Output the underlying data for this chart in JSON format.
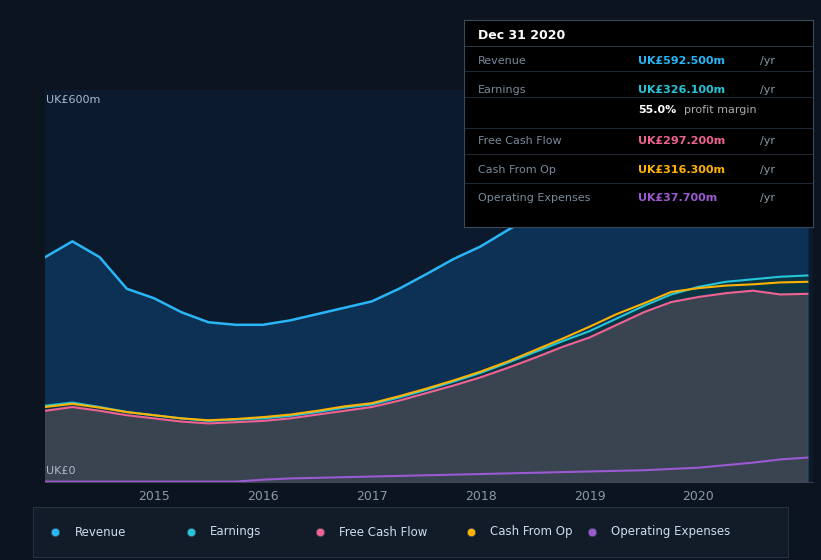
{
  "bg_color": "#0c1420",
  "plot_bg": "#0c1a2e",
  "title": "Dec 31 2020",
  "ylabel_top": "UK£600m",
  "ylabel_bottom": "UK£0",
  "grid_color": "#1a2d45",
  "x_years": [
    2014.0,
    2014.25,
    2014.5,
    2014.75,
    2015.0,
    2015.25,
    2015.5,
    2015.75,
    2016.0,
    2016.25,
    2016.5,
    2016.75,
    2017.0,
    2017.25,
    2017.5,
    2017.75,
    2018.0,
    2018.25,
    2018.5,
    2018.75,
    2019.0,
    2019.25,
    2019.5,
    2019.75,
    2020.0,
    2020.25,
    2020.5,
    2020.75,
    2021.0
  ],
  "revenue": [
    355,
    380,
    355,
    305,
    290,
    268,
    252,
    248,
    248,
    255,
    265,
    275,
    285,
    305,
    328,
    352,
    372,
    398,
    422,
    455,
    475,
    500,
    522,
    550,
    565,
    575,
    582,
    590,
    592
  ],
  "earnings": [
    120,
    125,
    118,
    110,
    105,
    100,
    96,
    98,
    100,
    104,
    110,
    117,
    122,
    133,
    145,
    158,
    172,
    188,
    205,
    222,
    238,
    258,
    278,
    296,
    308,
    316,
    320,
    324,
    326
  ],
  "free_cash_flow": [
    112,
    118,
    112,
    105,
    100,
    95,
    92,
    94,
    96,
    100,
    106,
    112,
    118,
    128,
    140,
    152,
    165,
    180,
    196,
    213,
    228,
    248,
    268,
    284,
    292,
    298,
    302,
    296,
    297
  ],
  "cash_from_op": [
    118,
    123,
    117,
    110,
    105,
    100,
    97,
    99,
    102,
    106,
    112,
    119,
    124,
    135,
    147,
    160,
    174,
    190,
    208,
    226,
    245,
    265,
    282,
    300,
    306,
    310,
    312,
    315,
    316
  ],
  "operating_expenses": [
    0,
    0,
    0,
    0,
    0,
    0,
    0,
    0,
    3,
    5,
    6,
    7,
    8,
    9,
    10,
    11,
    12,
    13,
    14,
    15,
    16,
    17,
    18,
    20,
    22,
    26,
    30,
    35,
    38
  ],
  "revenue_color": "#29b6f6",
  "earnings_color": "#26c6da",
  "free_cash_flow_color": "#f06292",
  "cash_from_op_color": "#ffb300",
  "operating_expenses_color": "#9c59d1",
  "annotation": {
    "date": "Dec 31 2020",
    "rows": [
      {
        "label": "Revenue",
        "value": "UK£592.500m",
        "suffix": "/yr",
        "color": "#29b6f6",
        "bold_label": false,
        "extra": null
      },
      {
        "label": "Earnings",
        "value": "UK£326.100m",
        "suffix": "/yr",
        "color": "#26c6da",
        "bold_label": false,
        "extra": "55.0% profit margin"
      },
      {
        "label": "Free Cash Flow",
        "value": "UK£297.200m",
        "suffix": "/yr",
        "color": "#f06292",
        "bold_label": false,
        "extra": null
      },
      {
        "label": "Cash From Op",
        "value": "UK£316.300m",
        "suffix": "/yr",
        "color": "#ffb300",
        "bold_label": false,
        "extra": null
      },
      {
        "label": "Operating Expenses",
        "value": "UK£37.700m",
        "suffix": "/yr",
        "color": "#9c59d1",
        "bold_label": false,
        "extra": null
      }
    ]
  },
  "legend": [
    {
      "label": "Revenue",
      "color": "#29b6f6"
    },
    {
      "label": "Earnings",
      "color": "#26c6da"
    },
    {
      "label": "Free Cash Flow",
      "color": "#f06292"
    },
    {
      "label": "Cash From Op",
      "color": "#ffb300"
    },
    {
      "label": "Operating Expenses",
      "color": "#9c59d1"
    }
  ],
  "xticks": [
    2015,
    2016,
    2017,
    2018,
    2019,
    2020
  ],
  "ylim": [
    0,
    620
  ],
  "xlim": [
    2014.0,
    2021.05
  ]
}
